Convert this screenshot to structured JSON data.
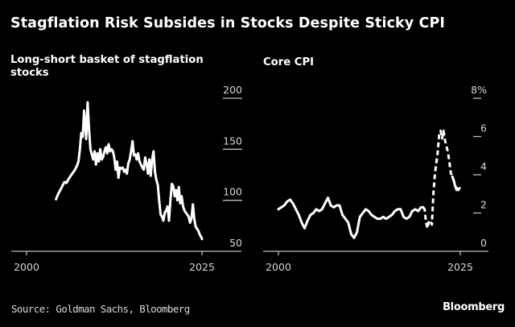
{
  "title": "Stagflation Risk Subsides in Stocks Despite Sticky CPI",
  "source": "Source: Goldman Sachs, Bloomberg",
  "brand": "Bloomberg",
  "chart_data": [
    {
      "type": "line",
      "title": "Long-short basket of stagflation stocks",
      "xlabel": "",
      "ylabel": "",
      "xlim": [
        1997.8,
        2030.6
      ],
      "ylim": [
        50,
        200
      ],
      "x_ticks": [
        2000,
        2025
      ],
      "x_tick_labels": [
        "2000",
        "2025"
      ],
      "y_ticks": [
        50,
        100,
        150,
        200
      ],
      "y_tick_labels": [
        "50",
        "100",
        "150",
        "200"
      ],
      "y_axis_side": "right",
      "grid": false,
      "legend": "none",
      "series": [
        {
          "name": "Long-short basket",
          "style": "solid",
          "x": [
            2004.2,
            2004.5,
            2004.8,
            2005.1,
            2005.4,
            2005.7,
            2006.0,
            2006.3,
            2006.6,
            2006.9,
            2007.2,
            2007.4,
            2007.6,
            2007.8,
            2008.0,
            2008.2,
            2008.4,
            2008.5,
            2008.7,
            2008.9,
            2009.1,
            2009.3,
            2009.5,
            2009.7,
            2009.9,
            2010.1,
            2010.3,
            2010.5,
            2010.7,
            2010.9,
            2011.1,
            2011.3,
            2011.5,
            2011.7,
            2011.9,
            2012.1,
            2012.3,
            2012.5,
            2012.7,
            2012.9,
            2013.1,
            2013.3,
            2013.5,
            2013.7,
            2013.9,
            2014.1,
            2014.3,
            2014.5,
            2014.7,
            2014.9,
            2015.1,
            2015.3,
            2015.5,
            2015.7,
            2015.9,
            2016.1,
            2016.3,
            2016.5,
            2016.7,
            2016.9,
            2017.1,
            2017.3,
            2017.5,
            2017.7,
            2017.9,
            2018.1,
            2018.3,
            2018.5,
            2018.7,
            2018.9,
            2019.1,
            2019.3,
            2019.5,
            2019.7,
            2019.9,
            2020.1,
            2020.3,
            2020.5,
            2020.7,
            2020.9,
            2021.1,
            2021.3,
            2021.5,
            2021.7,
            2021.9,
            2022.1,
            2022.3,
            2022.5,
            2022.7,
            2022.9,
            2023.1,
            2023.3,
            2023.5,
            2023.7,
            2023.9,
            2024.1,
            2024.3,
            2024.5,
            2024.7,
            2024.9,
            2025.0
          ],
          "values": [
            101,
            106,
            110,
            114,
            118,
            117,
            121,
            124,
            127,
            130,
            134,
            138,
            150,
            166,
            162,
            188,
            170,
            160,
            196,
            170,
            150,
            145,
            140,
            148,
            135,
            146,
            138,
            150,
            140,
            142,
            148,
            152,
            146,
            155,
            148,
            150,
            148,
            142,
            130,
            138,
            122,
            132,
            131,
            132,
            128,
            130,
            126,
            136,
            140,
            148,
            158,
            144,
            145,
            140,
            146,
            138,
            135,
            132,
            130,
            142,
            136,
            126,
            140,
            124,
            140,
            148,
            128,
            120,
            115,
            100,
            86,
            84,
            80,
            88,
            90,
            94,
            80,
            100,
            116,
            114,
            104,
            110,
            100,
            113,
            97,
            104,
            94,
            90,
            88,
            86,
            84,
            78,
            82,
            96,
            82,
            74,
            72,
            70,
            66,
            64,
            62
          ]
        }
      ]
    },
    {
      "type": "line",
      "title": "Core CPI",
      "xlabel": "",
      "ylabel": "",
      "xlim": [
        1997.9,
        2029.0
      ],
      "ylim": [
        0,
        8
      ],
      "x_ticks": [
        2000,
        2025
      ],
      "x_tick_labels": [
        "2000",
        "2025"
      ],
      "y_ticks": [
        0,
        2,
        4,
        6,
        8
      ],
      "y_tick_labels": [
        "0",
        "2",
        "4",
        "6",
        "8%"
      ],
      "y_axis_side": "right",
      "grid": false,
      "legend": "none",
      "series": [
        {
          "name": "Core CPI",
          "style": "solid",
          "x": [
            2000.0,
            2000.4,
            2000.8,
            2001.2,
            2001.6,
            2002.0,
            2002.4,
            2002.8,
            2003.2,
            2003.6,
            2004.0,
            2004.4,
            2004.8,
            2005.2,
            2005.6,
            2006.0,
            2006.4,
            2006.8,
            2007.2,
            2007.6,
            2008.0,
            2008.4,
            2008.8,
            2009.2,
            2009.6,
            2010.0,
            2010.4,
            2010.8,
            2011.2,
            2011.6,
            2012.0,
            2012.4,
            2012.8,
            2013.2,
            2013.6,
            2014.0,
            2014.4,
            2014.8,
            2015.2,
            2015.6,
            2016.0,
            2016.4,
            2016.8,
            2017.2,
            2017.6,
            2018.0,
            2018.4,
            2018.8,
            2019.2,
            2019.6,
            2019.9
          ],
          "values": [
            2.2,
            2.3,
            2.4,
            2.6,
            2.7,
            2.5,
            2.2,
            1.9,
            1.5,
            1.2,
            1.6,
            1.9,
            2.0,
            2.2,
            2.1,
            2.2,
            2.5,
            2.8,
            2.4,
            2.3,
            2.4,
            2.4,
            1.9,
            1.7,
            1.5,
            0.9,
            0.7,
            1.0,
            1.8,
            2.0,
            2.2,
            2.1,
            1.9,
            1.8,
            1.7,
            1.7,
            1.8,
            1.7,
            1.8,
            1.9,
            2.1,
            2.2,
            2.2,
            1.8,
            1.7,
            1.8,
            2.1,
            2.2,
            2.1,
            2.3,
            2.3
          ]
        },
        {
          "name": "Core CPI (dashed period)",
          "style": "dashed",
          "x": [
            2019.9,
            2020.1,
            2020.3,
            2020.5,
            2020.7,
            2020.9,
            2021.1,
            2021.3,
            2021.5,
            2021.7,
            2021.9,
            2022.1,
            2022.3,
            2022.5,
            2022.7,
            2022.9,
            2023.1,
            2023.3,
            2023.5,
            2023.7,
            2023.9,
            2024.1,
            2024.3,
            2024.5,
            2024.7,
            2024.9
          ],
          "values": [
            2.3,
            2.2,
            1.5,
            1.2,
            1.6,
            1.6,
            1.4,
            3.0,
            4.0,
            4.6,
            5.2,
            6.1,
            6.3,
            5.9,
            6.3,
            5.8,
            5.5,
            5.2,
            4.7,
            4.1,
            3.9,
            3.7,
            3.4,
            3.2,
            3.2,
            3.2
          ]
        },
        {
          "name": "Core CPI (recent)",
          "style": "solid",
          "x": [
            2023.9,
            2024.1,
            2024.3,
            2024.5,
            2024.7,
            2024.9
          ],
          "values": [
            3.9,
            3.7,
            3.4,
            3.3,
            3.2,
            3.3
          ]
        }
      ]
    }
  ]
}
